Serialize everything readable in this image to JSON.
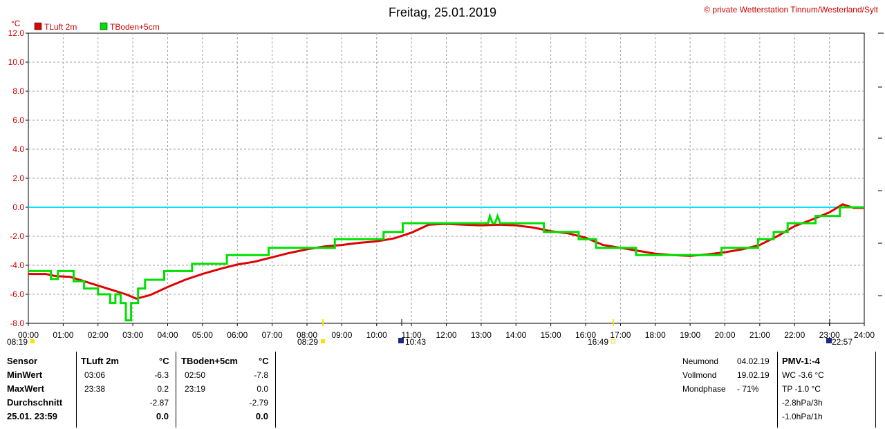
{
  "header": {
    "title": "Freitag, 25.01.2019",
    "copyright": "© private Wetterstation Tinnum/Westerland/Sylt",
    "unit": "°C"
  },
  "legend": [
    {
      "label": "TLuft 2m",
      "color": "#e00000"
    },
    {
      "label": "TBoden+5cm",
      "color": "#00e000"
    }
  ],
  "colors": {
    "zero_line": "#00e0ff",
    "grid": "#a0a0a0",
    "axis_text": "#cc0000"
  },
  "time_markers": {
    "sunrise": "08:29",
    "sunset": "16:49",
    "moonrise": "22:57",
    "moonset": "10:43",
    "prev": "08:19"
  },
  "chart_data": {
    "type": "line",
    "title": "Freitag, 25.01.2019",
    "xlabel": "",
    "ylabel": "°C",
    "xlim": [
      0,
      24
    ],
    "ylim": [
      -8,
      12
    ],
    "grid": true,
    "legend_position": "top-left",
    "x_ticks": [
      "00:00",
      "01:00",
      "02:00",
      "03:00",
      "04:00",
      "05:00",
      "06:00",
      "07:00",
      "08:00",
      "09:00",
      "10:00",
      "11:00",
      "12:00",
      "13:00",
      "14:00",
      "15:00",
      "16:00",
      "17:00",
      "18:00",
      "19:00",
      "20:00",
      "21:00",
      "22:00",
      "23:00",
      "24:00"
    ],
    "y_ticks": [
      "12.0",
      "10.0",
      "8.0",
      "6.0",
      "4.0",
      "2.0",
      "0.0",
      "-2.0",
      "-4.0",
      "-6.0",
      "-8.0"
    ],
    "series": [
      {
        "name": "TLuft 2m",
        "color": "#e00000",
        "step": false,
        "points": [
          [
            0,
            -4.6
          ],
          [
            0.5,
            -4.6
          ],
          [
            0.8,
            -4.75
          ],
          [
            1.2,
            -4.8
          ],
          [
            1.6,
            -5.1
          ],
          [
            2.0,
            -5.4
          ],
          [
            2.4,
            -5.7
          ],
          [
            2.8,
            -6.0
          ],
          [
            3.1,
            -6.3
          ],
          [
            3.5,
            -6.05
          ],
          [
            4.0,
            -5.5
          ],
          [
            4.5,
            -5.0
          ],
          [
            5.0,
            -4.6
          ],
          [
            5.5,
            -4.25
          ],
          [
            6.0,
            -3.95
          ],
          [
            6.5,
            -3.75
          ],
          [
            7.0,
            -3.45
          ],
          [
            7.5,
            -3.15
          ],
          [
            8.0,
            -2.9
          ],
          [
            8.5,
            -2.7
          ],
          [
            9.0,
            -2.6
          ],
          [
            9.5,
            -2.45
          ],
          [
            10.0,
            -2.35
          ],
          [
            10.5,
            -2.15
          ],
          [
            11.0,
            -1.75
          ],
          [
            11.5,
            -1.2
          ],
          [
            12.0,
            -1.15
          ],
          [
            12.5,
            -1.2
          ],
          [
            13.0,
            -1.25
          ],
          [
            13.5,
            -1.2
          ],
          [
            14.0,
            -1.25
          ],
          [
            14.5,
            -1.4
          ],
          [
            15.0,
            -1.65
          ],
          [
            15.5,
            -1.8
          ],
          [
            16.0,
            -2.1
          ],
          [
            16.5,
            -2.6
          ],
          [
            17.0,
            -2.8
          ],
          [
            17.5,
            -3.0
          ],
          [
            18.0,
            -3.2
          ],
          [
            18.5,
            -3.3
          ],
          [
            19.0,
            -3.35
          ],
          [
            19.5,
            -3.25
          ],
          [
            20.0,
            -3.1
          ],
          [
            20.5,
            -2.9
          ],
          [
            21.0,
            -2.6
          ],
          [
            21.5,
            -2.0
          ],
          [
            22.0,
            -1.3
          ],
          [
            22.5,
            -0.85
          ],
          [
            23.0,
            -0.35
          ],
          [
            23.38,
            0.2
          ],
          [
            23.7,
            -0.05
          ],
          [
            24.0,
            -0.05
          ]
        ]
      },
      {
        "name": "TBoden+5cm",
        "color": "#00e000",
        "step": true,
        "points": [
          [
            0,
            -4.4
          ],
          [
            0.65,
            -4.4
          ],
          [
            0.65,
            -4.95
          ],
          [
            0.85,
            -4.95
          ],
          [
            0.85,
            -4.4
          ],
          [
            1.3,
            -4.4
          ],
          [
            1.3,
            -5.1
          ],
          [
            1.6,
            -5.1
          ],
          [
            1.6,
            -5.6
          ],
          [
            2.0,
            -5.6
          ],
          [
            2.0,
            -6.0
          ],
          [
            2.35,
            -6.0
          ],
          [
            2.35,
            -6.6
          ],
          [
            2.5,
            -6.6
          ],
          [
            2.5,
            -6.0
          ],
          [
            2.65,
            -6.0
          ],
          [
            2.65,
            -6.6
          ],
          [
            2.8,
            -6.6
          ],
          [
            2.8,
            -7.8
          ],
          [
            2.95,
            -7.8
          ],
          [
            2.95,
            -6.6
          ],
          [
            3.15,
            -6.6
          ],
          [
            3.15,
            -5.6
          ],
          [
            3.35,
            -5.6
          ],
          [
            3.35,
            -5.0
          ],
          [
            3.9,
            -5.0
          ],
          [
            3.9,
            -4.4
          ],
          [
            4.7,
            -4.4
          ],
          [
            4.7,
            -3.9
          ],
          [
            5.7,
            -3.9
          ],
          [
            5.7,
            -3.3
          ],
          [
            6.9,
            -3.3
          ],
          [
            6.9,
            -2.8
          ],
          [
            8.8,
            -2.8
          ],
          [
            8.8,
            -2.2
          ],
          [
            10.2,
            -2.2
          ],
          [
            10.2,
            -1.7
          ],
          [
            10.75,
            -1.7
          ],
          [
            10.75,
            -1.1
          ],
          [
            13.2,
            -1.1
          ],
          [
            13.25,
            -0.6
          ],
          [
            13.33,
            -1.1
          ],
          [
            13.4,
            -1.1
          ],
          [
            13.47,
            -0.6
          ],
          [
            13.55,
            -1.1
          ],
          [
            14.8,
            -1.1
          ],
          [
            14.8,
            -1.7
          ],
          [
            15.8,
            -1.7
          ],
          [
            15.8,
            -2.2
          ],
          [
            16.3,
            -2.2
          ],
          [
            16.3,
            -2.8
          ],
          [
            17.45,
            -2.8
          ],
          [
            17.45,
            -3.3
          ],
          [
            19.9,
            -3.3
          ],
          [
            19.9,
            -2.8
          ],
          [
            20.95,
            -2.8
          ],
          [
            20.95,
            -2.2
          ],
          [
            21.4,
            -2.2
          ],
          [
            21.4,
            -1.7
          ],
          [
            21.8,
            -1.7
          ],
          [
            21.8,
            -1.1
          ],
          [
            22.6,
            -1.1
          ],
          [
            22.6,
            -0.6
          ],
          [
            23.3,
            -0.6
          ],
          [
            23.3,
            0.0
          ],
          [
            24.0,
            0.0
          ]
        ]
      }
    ]
  },
  "stats": {
    "labels": {
      "sensor": "Sensor",
      "min": "MinWert",
      "max": "MaxWert",
      "avg": "Durchschnitt",
      "now": "25.01. 23:59"
    },
    "col1": {
      "header": "TLuft 2m",
      "unit": "°C",
      "min_time": "03:06",
      "min_val": "-6.3",
      "max_time": "23:38",
      "max_val": "0.2",
      "avg": "-2.87",
      "now": "0.0"
    },
    "col2": {
      "header": "TBoden+5cm",
      "unit": "°C",
      "min_time": "02:50",
      "min_val": "-7.8",
      "max_time": "23:19",
      "max_val": "0.0",
      "avg": "-2.79",
      "now": "0.0"
    },
    "moon": {
      "new_label": "Neumond",
      "new_date": "04.02.19",
      "full_label": "Vollmond",
      "full_date": "19.02.19",
      "phase_label": "Mondphase",
      "phase_val": "- 71%"
    },
    "misc": {
      "pmv": "PMV-1:-4",
      "wc": "WC -3.6 °C",
      "tp": "TP -1.0 °C",
      "p3h": "-2.8hPa/3h",
      "p1h": "-1.0hPa/1h"
    }
  }
}
